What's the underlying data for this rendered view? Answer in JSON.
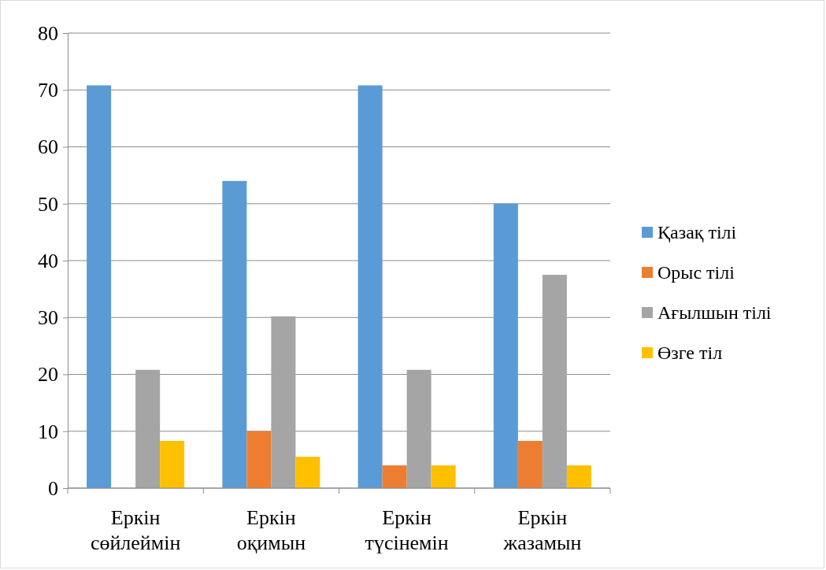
{
  "chart_data": {
    "type": "bar",
    "categories": [
      "Еркін сөйлеймін",
      "Еркін оқимын",
      "Еркін түсінемін",
      "Еркін жазамын"
    ],
    "series": [
      {
        "name": "Қазақ тілі",
        "color": "#5b9bd5",
        "values": [
          70.8,
          54,
          70.8,
          50
        ]
      },
      {
        "name": "Орыс тілі",
        "color": "#ed7d31",
        "values": [
          0,
          10,
          4,
          8.3
        ]
      },
      {
        "name": "Ағылшын тілі",
        "color": "#a5a5a5",
        "values": [
          20.8,
          30.2,
          20.8,
          37.5
        ]
      },
      {
        "name": "Өзге тіл",
        "color": "#ffc000",
        "values": [
          8.3,
          5.5,
          4,
          4
        ]
      }
    ],
    "ylim": [
      0,
      80
    ],
    "yticks": [
      0,
      10,
      20,
      30,
      40,
      50,
      60,
      70,
      80
    ],
    "grid": "y",
    "legend": "right"
  }
}
